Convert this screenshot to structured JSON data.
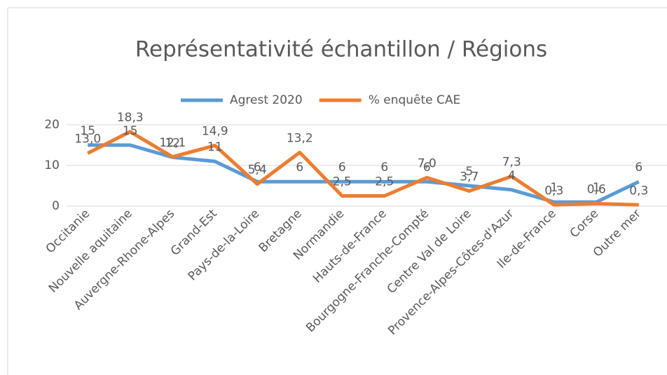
{
  "chart_data": {
    "type": "line",
    "title": "Représentativité échantillon / Régions",
    "categories": [
      "Occitanie",
      "Nouvelle aquitaine",
      "Auvergne-Rhone-Alpes",
      "Grand-Est",
      "Pays-de-la-Loire",
      "Bretagne",
      "Normandie",
      "Hauts-de-France",
      "Bourgogne-Franche-Compté",
      "Centre Val de Loire",
      "Provence-Alpes-Côtes-d'Azur",
      "Ile-de-France",
      "Corse",
      "Outre mer"
    ],
    "series": [
      {
        "name": "Agrest 2020",
        "color": "#5b9bd5",
        "values": [
          15,
          15,
          12,
          11,
          6,
          6,
          6,
          6,
          6,
          5,
          4,
          1,
          1,
          6
        ]
      },
      {
        "name": "% enquête CAE",
        "color": "#ed7d31",
        "values": [
          13.0,
          18.3,
          12.1,
          14.9,
          5.4,
          13.2,
          2.5,
          2.5,
          7.0,
          3.7,
          7.3,
          0.3,
          0.6,
          0.3
        ],
        "value_labels": [
          "13,0",
          "18,3",
          "12,1",
          "14,9",
          "5,4",
          "13,2",
          "2,5",
          "2,5",
          "7,0",
          "3,7",
          "7,3",
          "0,3",
          "0,6",
          "0,3"
        ]
      }
    ],
    "ylim": [
      0,
      20
    ],
    "yticks": [
      0,
      10,
      20
    ],
    "grid": true,
    "legend": "top"
  }
}
